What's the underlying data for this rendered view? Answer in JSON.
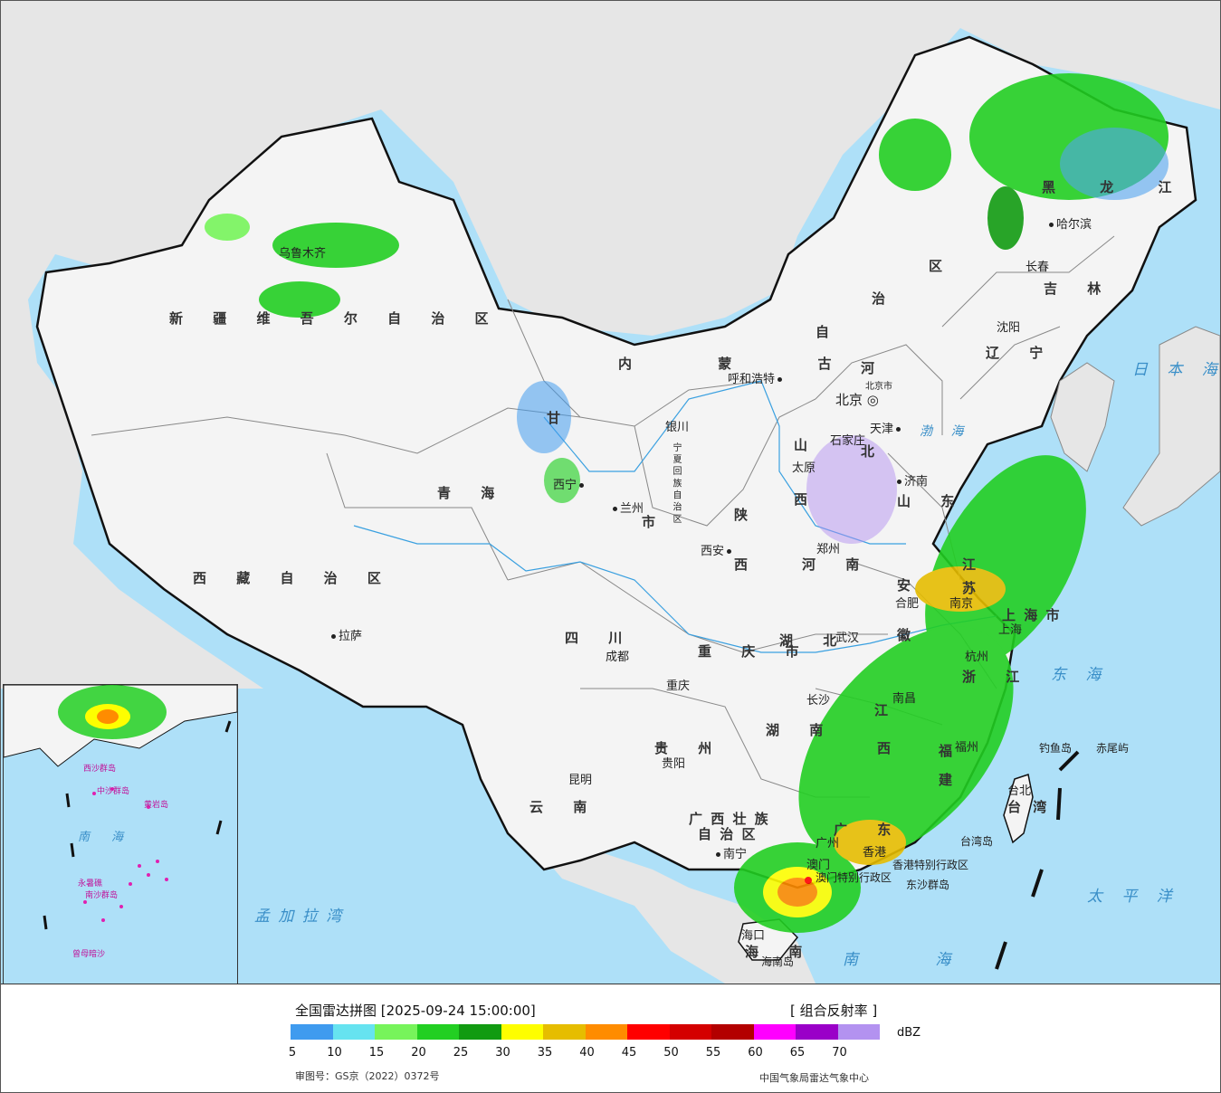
{
  "title": "全国雷达拼图 [2025-09-24 15:00:00]",
  "product": "[ 组合反射率 ]",
  "unit": "dBZ",
  "review_number": "审图号：GS京（2022）0372号",
  "agency": "中国气象局雷达气象中心",
  "colorbar": {
    "colors": [
      "#3f9bef",
      "#66e3f0",
      "#77f45b",
      "#22cf22",
      "#119b11",
      "#fefe00",
      "#e6bd00",
      "#ff8c00",
      "#ff0000",
      "#d40000",
      "#b30000",
      "#ff00ff",
      "#9a00c8",
      "#b392f0"
    ],
    "ticks": [
      "5",
      "10",
      "15",
      "20",
      "25",
      "30",
      "35",
      "40",
      "45",
      "50",
      "55",
      "60",
      "65",
      "70"
    ]
  },
  "regions": [
    "新 疆 维 吾 尔 自 治 区",
    "西 藏 自 治 区",
    "青 海",
    "甘",
    "四 川",
    "云 南",
    "贵 州",
    "重 庆 市",
    "广 西 壮 族",
    "自 治 区",
    "广 东",
    "海 南",
    "湖 南",
    "湖 北",
    "河 南",
    "陕",
    "西",
    "山",
    "西",
    "河",
    "北",
    "山 东",
    "安",
    "徽",
    "江",
    "苏",
    "浙 江",
    "福",
    "建",
    "江",
    "西",
    "台 湾",
    "上 海 市",
    "辽 宁",
    "吉 林",
    "黑 龙 江",
    "内 蒙 古",
    "自",
    "治",
    "区",
    "宁 夏 回 族 自 治 区",
    "市"
  ],
  "cities": [
    "乌鲁木齐",
    "拉萨",
    "西宁",
    "兰州",
    "银川",
    "呼和浩特",
    "北京",
    "天津",
    "石家庄",
    "太原",
    "济南",
    "郑州",
    "西安",
    "成都",
    "重庆",
    "贵阳",
    "昆明",
    "南宁",
    "广州",
    "海口",
    "长沙",
    "武汉",
    "南昌",
    "合肥",
    "南京",
    "杭州",
    "上海",
    "福州",
    "台北",
    "沈阳",
    "长春",
    "哈尔滨",
    "北京市",
    "香港",
    "澳门"
  ],
  "other_labels": {
    "seas": [
      "日 本 海",
      "东 海",
      "太 平 洋",
      "南 海",
      "渤 海",
      "孟 加 拉 湾"
    ],
    "islands": [
      "钓鱼岛",
      "赤尾屿",
      "台湾岛",
      "海南岛",
      "东沙群岛"
    ],
    "hk": "香港特别行政区",
    "macau": "澳门特别行政区",
    "inset": [
      "南 海",
      "中沙群岛",
      "黄岩岛",
      "西沙群岛",
      "南沙群岛",
      "永暑礁",
      "曾母暗沙"
    ]
  }
}
